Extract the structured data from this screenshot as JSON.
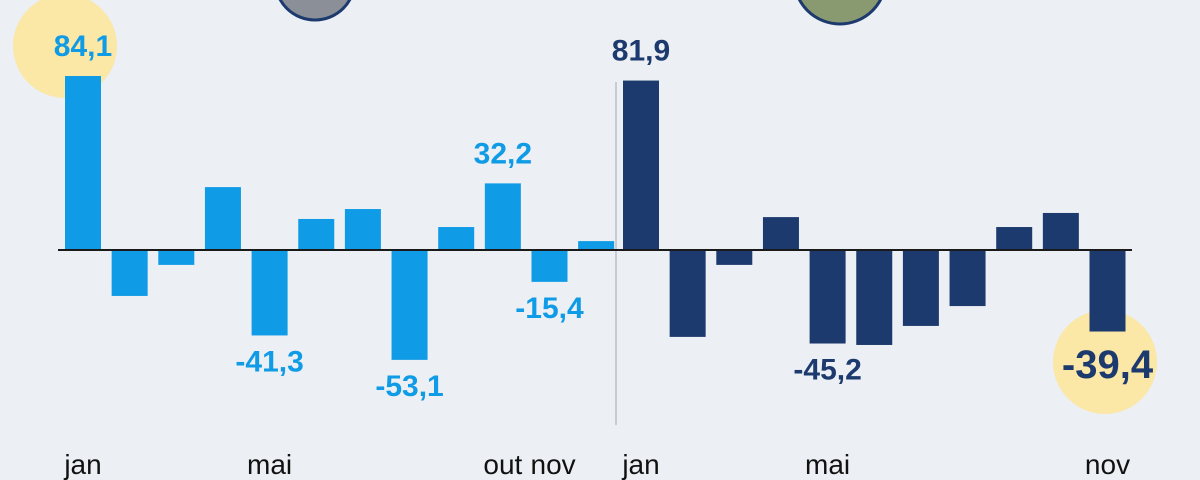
{
  "chart_data": [
    {
      "type": "bar",
      "color": "#0f9be6",
      "categories": [
        "jan",
        null,
        null,
        null,
        "mai",
        null,
        null,
        null,
        null,
        "out",
        "nov",
        null
      ],
      "values": [
        84.1,
        -22.2,
        -7.2,
        30.4,
        -41.3,
        15.0,
        19.8,
        -53.1,
        11.1,
        32.2,
        -15.4,
        4.3
      ],
      "value_labels": [
        "84,1",
        null,
        null,
        null,
        "-41,3",
        null,
        null,
        "-53,1",
        null,
        "32,2",
        "-15,4",
        null
      ]
    },
    {
      "type": "bar",
      "color": "#1d3a6e",
      "categories": [
        "jan",
        null,
        null,
        null,
        "mai",
        null,
        null,
        null,
        null,
        null,
        "nov"
      ],
      "values": [
        81.9,
        -42.0,
        -7.2,
        15.9,
        -45.2,
        -45.9,
        -36.7,
        -27.1,
        11.1,
        17.9,
        -39.4
      ],
      "value_labels": [
        "81,9",
        null,
        null,
        null,
        "-45,2",
        null,
        null,
        null,
        null,
        null,
        "-39,4"
      ]
    }
  ]
}
